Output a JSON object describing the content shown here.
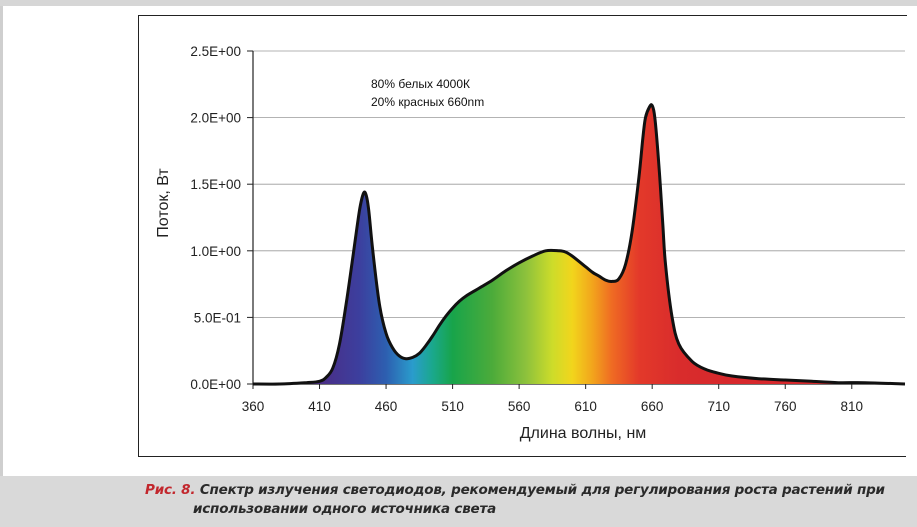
{
  "chart_data": {
    "type": "line",
    "title": "",
    "annotation_lines": [
      "80% белых 4000К",
      "20% красных 660nm"
    ],
    "xlabel": "Длина волны, нм",
    "ylabel": "Поток, Вт",
    "xlim": [
      360,
      850
    ],
    "ylim": [
      0,
      2.5
    ],
    "x_ticks": [
      360,
      410,
      460,
      510,
      560,
      610,
      660,
      710,
      760,
      810
    ],
    "y_ticks": [
      {
        "value": 0.0,
        "label": "0.0E+00"
      },
      {
        "value": 0.5,
        "label": "5.0E-01"
      },
      {
        "value": 1.0,
        "label": "1.0E+00"
      },
      {
        "value": 1.5,
        "label": "1.5E+00"
      },
      {
        "value": 2.0,
        "label": "2.0E+00"
      },
      {
        "value": 2.5,
        "label": "2.5E+00"
      }
    ],
    "grid": "horizontal",
    "fill": "visible spectrum colors",
    "series": [
      {
        "x": [
          360,
          380,
          400,
          410,
          415,
          420,
          425,
          430,
          435,
          440,
          443,
          445,
          447,
          450,
          455,
          460,
          465,
          470,
          475,
          480,
          485,
          490,
          495,
          500,
          505,
          510,
          515,
          520,
          530,
          540,
          550,
          560,
          570,
          580,
          590,
          595,
          600,
          610,
          615,
          620,
          625,
          630,
          635,
          640,
          645,
          650,
          653,
          655,
          658,
          660,
          662,
          665,
          668,
          670,
          675,
          680,
          690,
          700,
          710,
          720,
          740,
          760,
          780,
          800,
          820,
          850
        ],
        "y": [
          0,
          0,
          0.01,
          0.02,
          0.05,
          0.12,
          0.3,
          0.6,
          0.95,
          1.3,
          1.43,
          1.42,
          1.3,
          1.0,
          0.6,
          0.38,
          0.27,
          0.21,
          0.19,
          0.2,
          0.23,
          0.29,
          0.36,
          0.44,
          0.51,
          0.57,
          0.62,
          0.66,
          0.72,
          0.78,
          0.85,
          0.91,
          0.96,
          1.0,
          1.0,
          0.99,
          0.96,
          0.88,
          0.84,
          0.81,
          0.78,
          0.77,
          0.79,
          0.9,
          1.15,
          1.55,
          1.85,
          2.0,
          2.08,
          2.09,
          2.0,
          1.65,
          1.2,
          0.9,
          0.5,
          0.3,
          0.17,
          0.11,
          0.08,
          0.06,
          0.04,
          0.03,
          0.02,
          0.01,
          0.01,
          0.0
        ]
      }
    ]
  },
  "caption": {
    "figure_label": "Рис. 8.",
    "text_line1": "Спектр излучения светодиодов, рекомендуемый для регулирования роста растений при",
    "text_line2": "использовании одного источника света"
  }
}
